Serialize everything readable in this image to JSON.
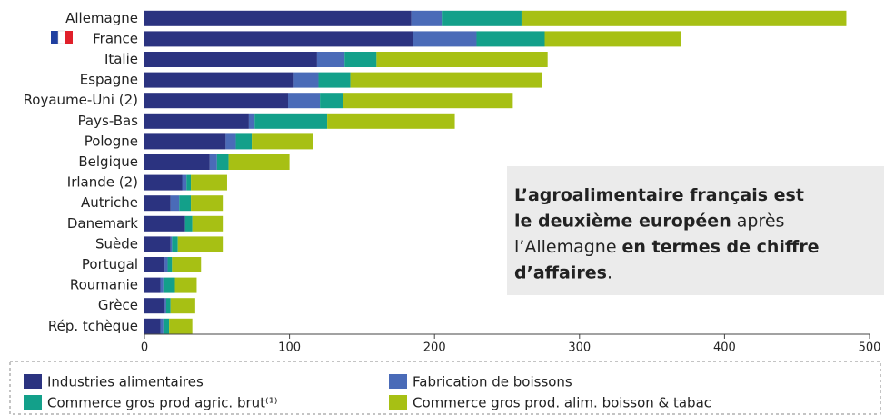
{
  "chart_data": {
    "type": "stacked_barh",
    "categories": [
      "Allemagne",
      "France",
      "Italie",
      "Espagne",
      "Royaume-Uni (2)",
      "Pays-Bas",
      "Pologne",
      "Belgique",
      "Irlande (2)",
      "Autriche",
      "Danemark",
      "Suède",
      "Portugal",
      "Roumanie",
      "Grèce",
      "Rép. tchèque"
    ],
    "series": [
      {
        "name": "Industries alimentaires",
        "color": "#2b3380",
        "values": [
          184,
          185,
          119,
          103,
          99,
          72,
          56,
          45,
          26,
          18,
          28,
          18,
          14,
          11,
          14,
          11
        ]
      },
      {
        "name": "Fabrication de boissons",
        "color": "#4a6bb8",
        "values": [
          21,
          44,
          19,
          17,
          22,
          4,
          7,
          5,
          3,
          6,
          0,
          1,
          2,
          2,
          1,
          2
        ]
      },
      {
        "name": "Commerce gros prod agric. brut⁽¹⁾",
        "color": "#13a08a",
        "values": [
          55,
          47,
          22,
          22,
          16,
          50,
          11,
          8,
          3,
          8,
          5,
          4,
          3,
          8,
          3,
          4
        ]
      },
      {
        "name": "Commerce gros prod. alim. boisson & tabac",
        "color": "#a7c014",
        "values": [
          224,
          94,
          118,
          132,
          117,
          88,
          42,
          42,
          25,
          22,
          21,
          31,
          20,
          15,
          17,
          16
        ]
      }
    ],
    "xlim": [
      0,
      500
    ],
    "xticks": [
      0,
      100,
      200,
      300,
      400,
      500
    ],
    "annotation": [
      [
        {
          "text": "L’agroalimentaire français est",
          "bold": true
        }
      ],
      [
        {
          "text": "le deuxième européen",
          "bold": true
        },
        {
          "text": " après",
          "bold": false
        }
      ],
      [
        {
          "text": "l’Allemagne ",
          "bold": false
        },
        {
          "text": "en termes de chiffre",
          "bold": true
        }
      ],
      [
        {
          "text": "d’affaires",
          "bold": true
        },
        {
          "text": ".",
          "bold": false
        }
      ]
    ]
  }
}
